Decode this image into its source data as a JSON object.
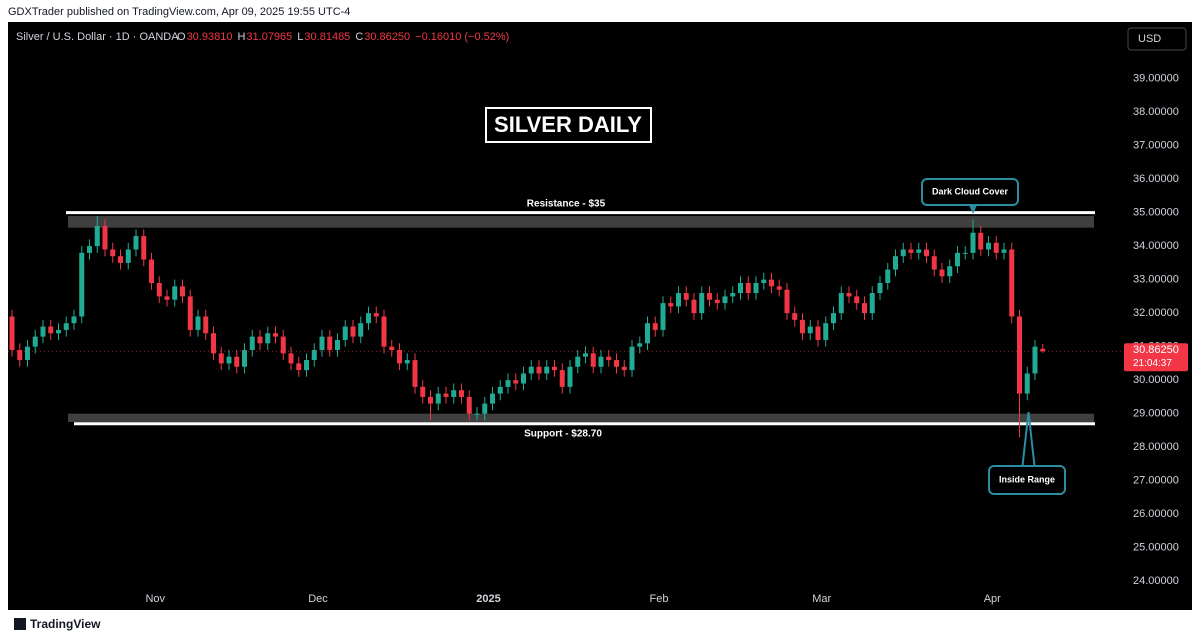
{
  "chart_data": {
    "type": "candlestick",
    "attribution": "GDXTrader published on TradingView.com, Apr 09, 2025 19:55 UTC-4",
    "symbol": "Silver / U.S. Dollar · 1D · OANDA",
    "ohlc_header": [
      {
        "key": "O",
        "value": "30.93810"
      },
      {
        "key": "H",
        "value": "31.07965"
      },
      {
        "key": "L",
        "value": "30.81485"
      },
      {
        "key": "C",
        "value": "30.86250"
      }
    ],
    "change": "−0.16010 (−0.52%)",
    "currency": "USD",
    "title": "SILVER DAILY",
    "footer": "TradingView",
    "up_color": "#22ab94",
    "down_color": "#f23645",
    "ylim": [
      23.2,
      40.6
    ],
    "yticks": [
      {
        "value": 24,
        "label": "24.00000"
      },
      {
        "value": 25,
        "label": "25.00000"
      },
      {
        "value": 26,
        "label": "26.00000"
      },
      {
        "value": 27,
        "label": "27.00000"
      },
      {
        "value": 28,
        "label": "28.00000"
      },
      {
        "value": 29,
        "label": "29.00000"
      },
      {
        "value": 30,
        "label": "30.00000"
      },
      {
        "value": 31,
        "label": "31.00000"
      },
      {
        "value": 32,
        "label": "32.00000"
      },
      {
        "value": 33,
        "label": "33.00000"
      },
      {
        "value": 34,
        "label": "34.00000"
      },
      {
        "value": 35,
        "label": "35.00000"
      },
      {
        "value": 36,
        "label": "36.00000"
      },
      {
        "value": 37,
        "label": "37.00000"
      },
      {
        "value": 38,
        "label": "38.00000"
      },
      {
        "value": 39,
        "label": "39.00000"
      }
    ],
    "resistance": {
      "label": "Resistance - $35",
      "value": 35,
      "zone": [
        34.55,
        34.9
      ]
    },
    "support": {
      "label": "Support - $28.70",
      "value": 28.7,
      "zone": [
        28.75,
        29.0
      ]
    },
    "annotations": [
      {
        "text": "Dark Cloud Cover"
      },
      {
        "text": "Inside Range"
      }
    ],
    "last_price": {
      "value": 30.8625,
      "label": "30.86250"
    },
    "countdown": "21:04:37",
    "categories": [
      null,
      null,
      null,
      null,
      null,
      null,
      null,
      null,
      null,
      null,
      null,
      null,
      null,
      null,
      null,
      null,
      null,
      null,
      null,
      "Nov",
      null,
      null,
      null,
      null,
      null,
      null,
      null,
      null,
      null,
      null,
      null,
      null,
      null,
      null,
      null,
      null,
      null,
      null,
      null,
      null,
      "Dec",
      null,
      null,
      null,
      null,
      null,
      null,
      null,
      null,
      null,
      null,
      null,
      null,
      null,
      null,
      null,
      null,
      null,
      null,
      null,
      null,
      null,
      "2025",
      null,
      null,
      null,
      null,
      null,
      null,
      null,
      null,
      null,
      null,
      null,
      null,
      null,
      null,
      null,
      null,
      null,
      null,
      null,
      null,
      null,
      "Feb",
      null,
      null,
      null,
      null,
      null,
      null,
      null,
      null,
      null,
      null,
      null,
      null,
      null,
      null,
      null,
      null,
      null,
      null,
      null,
      null,
      "Mar",
      null,
      null,
      null,
      null,
      null,
      null,
      null,
      null,
      null,
      null,
      null,
      null,
      null,
      null,
      null,
      null,
      null,
      null,
      null,
      null,
      null,
      "Apr",
      null,
      null,
      null,
      null,
      null,
      null
    ],
    "open": [
      31.9,
      30.9,
      30.6,
      31.0,
      31.3,
      31.6,
      31.4,
      31.5,
      31.7,
      31.9,
      33.8,
      34.0,
      34.6,
      33.9,
      33.7,
      33.5,
      33.9,
      34.3,
      33.6,
      32.9,
      32.5,
      32.4,
      32.8,
      32.5,
      31.5,
      31.9,
      31.4,
      30.8,
      30.5,
      30.7,
      30.4,
      30.9,
      31.3,
      31.1,
      31.4,
      31.3,
      30.8,
      30.5,
      30.3,
      30.6,
      30.9,
      31.3,
      30.9,
      31.2,
      31.6,
      31.3,
      31.7,
      32.0,
      31.9,
      31.0,
      30.9,
      30.5,
      30.6,
      29.8,
      29.5,
      29.3,
      29.6,
      29.5,
      29.7,
      29.5,
      29.0,
      29.0,
      29.3,
      29.6,
      29.8,
      30.0,
      29.9,
      30.2,
      30.4,
      30.2,
      30.4,
      30.3,
      29.8,
      30.4,
      30.7,
      30.8,
      30.4,
      30.7,
      30.6,
      30.4,
      30.3,
      31.0,
      31.1,
      31.7,
      31.5,
      32.3,
      32.2,
      32.6,
      32.4,
      32.0,
      32.6,
      32.4,
      32.3,
      32.5,
      32.6,
      32.9,
      32.6,
      32.9,
      33.0,
      32.8,
      32.7,
      32.0,
      31.8,
      31.4,
      31.6,
      31.2,
      31.7,
      32.0,
      32.6,
      32.5,
      32.3,
      32.0,
      32.6,
      32.9,
      33.3,
      33.7,
      33.9,
      33.8,
      33.9,
      33.7,
      33.3,
      33.1,
      33.4,
      33.8,
      33.8,
      34.4,
      33.9,
      34.1,
      33.8,
      33.9,
      31.9,
      29.6,
      30.2,
      30.9381
    ],
    "high": [
      32.1,
      31.1,
      31.2,
      31.5,
      31.8,
      31.8,
      31.7,
      31.9,
      32.1,
      34.0,
      34.2,
      34.9,
      34.8,
      34.1,
      33.9,
      34.1,
      34.5,
      34.5,
      33.8,
      33.1,
      32.7,
      33.0,
      33.0,
      32.7,
      32.1,
      32.1,
      31.6,
      31.0,
      30.9,
      30.9,
      31.1,
      31.5,
      31.5,
      31.6,
      31.6,
      31.5,
      31.0,
      30.7,
      30.8,
      31.1,
      31.5,
      31.5,
      31.4,
      31.8,
      31.8,
      31.9,
      32.2,
      32.2,
      32.1,
      31.2,
      31.1,
      30.8,
      30.8,
      30.0,
      29.7,
      29.8,
      29.8,
      29.9,
      29.9,
      29.7,
      29.2,
      29.5,
      29.8,
      30.0,
      30.2,
      30.2,
      30.4,
      30.6,
      30.6,
      30.6,
      30.6,
      30.5,
      30.6,
      30.9,
      31.0,
      31.0,
      30.9,
      30.9,
      30.8,
      30.6,
      31.2,
      31.3,
      31.9,
      31.9,
      32.5,
      32.5,
      32.8,
      32.8,
      32.6,
      32.8,
      32.8,
      32.6,
      32.7,
      32.8,
      33.1,
      33.1,
      33.1,
      33.2,
      33.2,
      33.0,
      32.9,
      32.2,
      32.0,
      31.8,
      31.8,
      31.9,
      32.2,
      32.8,
      32.8,
      32.7,
      32.5,
      32.8,
      33.1,
      33.5,
      33.9,
      34.1,
      34.1,
      34.1,
      34.1,
      33.9,
      33.5,
      33.6,
      34.0,
      34.0,
      34.8,
      34.6,
      34.3,
      34.3,
      34.1,
      34.1,
      32.1,
      30.4,
      31.2,
      31.07965
    ],
    "low": [
      30.7,
      30.4,
      30.4,
      30.8,
      31.1,
      31.2,
      31.2,
      31.3,
      31.5,
      31.7,
      33.6,
      33.8,
      33.7,
      33.5,
      33.3,
      33.3,
      33.7,
      33.4,
      32.7,
      32.3,
      32.2,
      32.2,
      32.3,
      31.3,
      31.3,
      31.2,
      30.6,
      30.3,
      30.3,
      30.2,
      30.2,
      30.7,
      30.9,
      30.9,
      31.1,
      30.6,
      30.3,
      30.1,
      30.1,
      30.4,
      30.7,
      30.7,
      30.7,
      31.0,
      31.1,
      31.1,
      31.5,
      31.7,
      30.8,
      30.7,
      30.3,
      30.3,
      29.6,
      29.3,
      28.8,
      29.1,
      29.3,
      29.3,
      29.3,
      28.8,
      28.8,
      28.8,
      29.1,
      29.4,
      29.6,
      29.7,
      29.7,
      30.0,
      30.0,
      30.0,
      30.1,
      29.6,
      29.6,
      30.2,
      30.5,
      30.2,
      30.2,
      30.4,
      30.2,
      30.1,
      30.1,
      30.8,
      30.9,
      31.3,
      31.3,
      32.0,
      32.0,
      32.2,
      31.8,
      31.8,
      32.2,
      32.1,
      32.1,
      32.3,
      32.4,
      32.4,
      32.4,
      32.7,
      32.6,
      32.5,
      31.8,
      31.6,
      31.2,
      31.2,
      31.0,
      31.0,
      31.5,
      31.8,
      32.3,
      32.1,
      31.8,
      31.8,
      32.4,
      32.7,
      33.1,
      33.5,
      33.6,
      33.6,
      33.5,
      33.1,
      32.9,
      32.9,
      33.2,
      33.6,
      33.6,
      33.7,
      33.7,
      33.6,
      33.6,
      31.7,
      28.3,
      29.4,
      30.0,
      30.81485
    ],
    "close": [
      30.9,
      30.6,
      31.0,
      31.3,
      31.6,
      31.4,
      31.5,
      31.7,
      31.9,
      33.8,
      34.0,
      34.6,
      33.9,
      33.7,
      33.5,
      33.9,
      34.3,
      33.6,
      32.9,
      32.5,
      32.4,
      32.8,
      32.5,
      31.5,
      31.9,
      31.4,
      30.8,
      30.5,
      30.7,
      30.4,
      30.9,
      31.3,
      31.1,
      31.4,
      31.3,
      30.8,
      30.5,
      30.3,
      30.6,
      30.9,
      31.3,
      30.9,
      31.2,
      31.6,
      31.3,
      31.7,
      32.0,
      31.9,
      31.0,
      30.9,
      30.5,
      30.6,
      29.8,
      29.5,
      29.3,
      29.6,
      29.5,
      29.7,
      29.5,
      29.0,
      29.0,
      29.3,
      29.6,
      29.8,
      30.0,
      29.9,
      30.2,
      30.4,
      30.2,
      30.4,
      30.3,
      29.8,
      30.4,
      30.7,
      30.8,
      30.4,
      30.7,
      30.6,
      30.4,
      30.3,
      31.0,
      31.1,
      31.7,
      31.5,
      32.3,
      32.2,
      32.6,
      32.4,
      32.0,
      32.6,
      32.4,
      32.3,
      32.5,
      32.6,
      32.9,
      32.6,
      32.9,
      33.0,
      32.8,
      32.7,
      32.0,
      31.8,
      31.4,
      31.6,
      31.2,
      31.7,
      32.0,
      32.6,
      32.5,
      32.3,
      32.0,
      32.6,
      32.9,
      33.3,
      33.7,
      33.9,
      33.8,
      33.9,
      33.7,
      33.3,
      33.1,
      33.4,
      33.8,
      33.8,
      34.4,
      33.9,
      34.1,
      33.8,
      33.9,
      31.9,
      29.6,
      30.2,
      31.0,
      30.8625
    ]
  }
}
